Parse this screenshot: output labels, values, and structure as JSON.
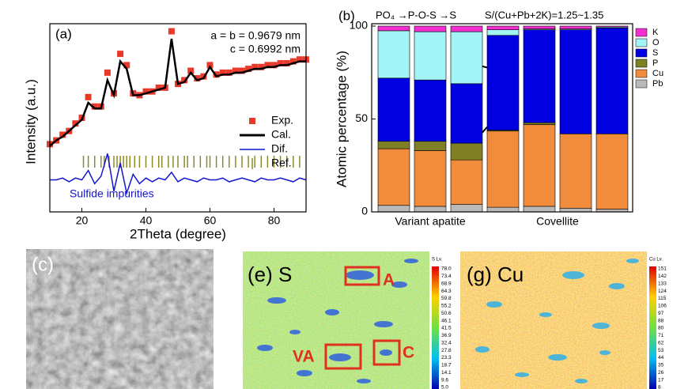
{
  "chart_data": [
    {
      "type": "line",
      "panel_label": "(a)",
      "x_label": "2Theta (degree)",
      "y_label": "Intensity (a.u.)",
      "annotations": [
        "a = b = 0.9679 nm",
        "c = 0.6992 nm",
        "Sulfide impurities"
      ],
      "x": [
        10,
        12,
        14,
        16,
        18,
        20,
        22,
        24,
        26,
        28,
        30,
        32,
        34,
        36,
        38,
        40,
        42,
        44,
        46,
        48,
        50,
        52,
        54,
        56,
        58,
        60,
        62,
        64,
        66,
        68,
        70,
        72,
        74,
        76,
        78,
        80,
        82,
        84,
        86,
        88,
        90
      ],
      "xlim": [
        10,
        90
      ],
      "xticks": [
        20,
        40,
        60,
        80
      ],
      "ylim": [
        0,
        100
      ],
      "series": [
        {
          "name": "Exp.",
          "color": "#e8392b",
          "values": [
            36,
            38,
            41,
            43,
            47,
            50,
            61,
            56,
            56,
            74,
            63,
            84,
            78,
            63,
            62,
            64,
            64,
            66,
            66,
            96,
            68,
            70,
            75,
            71,
            72,
            78,
            73,
            74,
            74,
            75,
            75,
            76,
            77,
            77,
            78,
            78,
            79,
            79,
            80,
            81,
            81
          ]
        },
        {
          "name": "Cal.",
          "color": "#000000",
          "values": [
            35,
            38,
            40,
            43,
            46,
            49,
            58,
            55,
            55,
            70,
            62,
            80,
            76,
            62,
            62,
            63,
            64,
            65,
            66,
            92,
            68,
            69,
            74,
            70,
            71,
            77,
            72,
            73,
            73,
            74,
            74,
            75,
            76,
            76,
            77,
            77,
            78,
            78,
            79,
            80,
            80
          ]
        },
        {
          "name": "Dif.",
          "color": "#1414d2",
          "values": [
            17,
            17,
            18,
            16,
            18,
            17,
            22,
            15,
            19,
            31,
            11,
            26,
            10,
            20,
            15,
            18,
            16,
            18,
            17,
            21,
            16,
            18,
            17,
            16,
            18,
            17,
            17,
            18,
            16,
            17,
            18,
            17,
            16,
            18,
            17,
            17,
            18,
            17,
            16,
            18,
            17
          ]
        }
      ],
      "ref": {
        "name": "Ref.",
        "color": "#8a8a2a",
        "x": [
          20.5,
          22,
          24,
          26,
          27,
          28.5,
          30,
          31,
          32,
          33,
          34,
          35,
          36.5,
          38,
          40,
          42,
          44,
          45,
          47,
          48.5,
          50,
          52,
          53,
          55,
          57,
          59,
          60,
          62,
          64,
          66,
          68,
          70,
          72,
          74,
          76,
          78,
          80,
          82,
          84,
          86,
          88
        ]
      }
    },
    {
      "type": "bar",
      "panel_label": "(b)",
      "y_label": "Atomic percentage (%)",
      "annotations": [
        "PO₄ →P-O-S →S",
        "S/(Cu+Pb+2K)=1.25~1.35"
      ],
      "groups": [
        {
          "label": "Variant apatite",
          "count": 3
        },
        {
          "label": "Covellite",
          "count": 4
        }
      ],
      "ylim": [
        0,
        100
      ],
      "yticks": [
        0,
        50,
        100
      ],
      "series": [
        {
          "name": "Pb",
          "color": "#b9b9b9",
          "values": [
            3.5,
            3,
            4,
            2.5,
            3,
            2,
            1.5
          ]
        },
        {
          "name": "Cu",
          "color": "#f08c3c",
          "values": [
            30.5,
            30,
            24,
            41,
            44,
            40,
            40.5
          ]
        },
        {
          "name": "P",
          "color": "#7f7f26",
          "values": [
            4,
            5,
            9,
            0.5,
            1,
            0,
            0
          ]
        },
        {
          "name": "S",
          "color": "#0000e0",
          "values": [
            34,
            33,
            32,
            51,
            50,
            56,
            57
          ]
        },
        {
          "name": "O",
          "color": "#a2f4f6",
          "values": [
            25.5,
            26,
            28,
            3,
            0.5,
            0.5,
            0.5
          ]
        },
        {
          "name": "K",
          "color": "#f230d2",
          "values": [
            2.5,
            3,
            3,
            2,
            1.5,
            1.5,
            0.5
          ]
        }
      ]
    }
  ],
  "maps": [
    {
      "label": "(c)"
    },
    {
      "label": "(e) S",
      "regions": [
        "A",
        "VA",
        "C"
      ],
      "colorbar": {
        "title": "S Lv.",
        "labels": [
          "78.0",
          "73.4",
          "68.9",
          "64.3",
          "59.8",
          "55.2",
          "50.6",
          "46.1",
          "41.5",
          "36.9",
          "32.4",
          "27.8",
          "23.3",
          "18.7",
          "14.1",
          "9.6",
          "5.0"
        ]
      }
    },
    {
      "label": "(g) Cu",
      "colorbar": {
        "title": "Cu Lv.",
        "labels": [
          "151",
          "142",
          "133",
          "124",
          "115",
          "106",
          "97",
          "88",
          "80",
          "71",
          "62",
          "53",
          "44",
          "35",
          "26",
          "17",
          "8"
        ]
      }
    }
  ]
}
